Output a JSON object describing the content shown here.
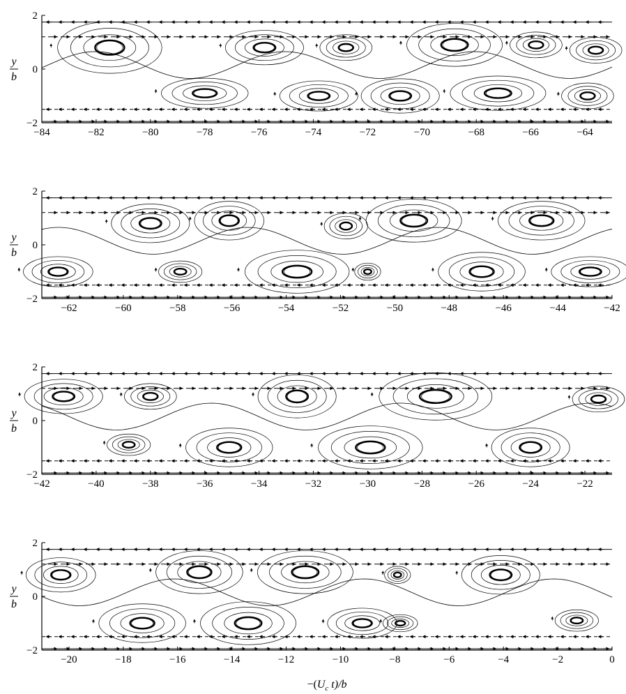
{
  "chart_data": {
    "type": "streamline",
    "xlabel": "−(U_c t)/b",
    "xlabel_parts": {
      "prefix": "−(",
      "U": "U",
      "c": "c",
      "t": " t)/",
      "b": "b"
    },
    "ylabel": {
      "num": "y",
      "den": "b"
    },
    "panels": [
      {
        "xlim": [
          -84,
          -63
        ],
        "ylim": [
          -2,
          2
        ],
        "xticks": [
          -84,
          -82,
          -80,
          -78,
          -76,
          -74,
          -72,
          -70,
          -68,
          -66,
          -64
        ],
        "xtick_labels": [
          "−84",
          "−82",
          "−80",
          "−78",
          "−76",
          "−74",
          "−72",
          "−70",
          "−68",
          "−66",
          "−64"
        ],
        "yticks": [
          -2,
          0,
          2
        ],
        "ytick_labels": [
          "−2",
          "0",
          "2"
        ],
        "vortices": [
          {
            "x": -81.5,
            "y": 0.8,
            "rx": 1.2,
            "ry": 0.6
          },
          {
            "x": -75.8,
            "y": 0.8,
            "rx": 0.9,
            "ry": 0.4
          },
          {
            "x": -72.8,
            "y": 0.8,
            "rx": 0.6,
            "ry": 0.3
          },
          {
            "x": -68.8,
            "y": 0.9,
            "rx": 1.1,
            "ry": 0.5
          },
          {
            "x": -65.8,
            "y": 0.9,
            "rx": 0.6,
            "ry": 0.3
          },
          {
            "x": -63.6,
            "y": 0.7,
            "rx": 0.6,
            "ry": 0.3
          },
          {
            "x": -78,
            "y": -0.9,
            "rx": 1.0,
            "ry": 0.35
          },
          {
            "x": -73.8,
            "y": -1.0,
            "rx": 0.9,
            "ry": 0.35
          },
          {
            "x": -70.8,
            "y": -1.0,
            "rx": 0.9,
            "ry": 0.4
          },
          {
            "x": -67.2,
            "y": -0.9,
            "rx": 1.1,
            "ry": 0.4
          },
          {
            "x": -63.9,
            "y": -1.0,
            "rx": 0.6,
            "ry": 0.3
          }
        ]
      },
      {
        "xlim": [
          -63,
          -42
        ],
        "ylim": [
          -2,
          2
        ],
        "xticks": [
          -62,
          -60,
          -58,
          -56,
          -54,
          -52,
          -50,
          -48,
          -46,
          -44,
          -42
        ],
        "xtick_labels": [
          "−62",
          "−60",
          "−58",
          "−56",
          "−54",
          "−52",
          "−50",
          "−48",
          "−46",
          "−44",
          "−42"
        ],
        "yticks": [
          -2,
          0,
          2
        ],
        "ytick_labels": [
          "−2",
          "0",
          "2"
        ],
        "vortices": [
          {
            "x": -59,
            "y": 0.8,
            "rx": 0.9,
            "ry": 0.45
          },
          {
            "x": -56.1,
            "y": 0.9,
            "rx": 0.8,
            "ry": 0.45
          },
          {
            "x": -51.8,
            "y": 0.7,
            "rx": 0.5,
            "ry": 0.3
          },
          {
            "x": -49.3,
            "y": 0.9,
            "rx": 1.1,
            "ry": 0.5
          },
          {
            "x": -44.6,
            "y": 0.9,
            "rx": 1.0,
            "ry": 0.45
          },
          {
            "x": -62.4,
            "y": -1.0,
            "rx": 0.8,
            "ry": 0.35
          },
          {
            "x": -57.9,
            "y": -1.0,
            "rx": 0.5,
            "ry": 0.25
          },
          {
            "x": -53.6,
            "y": -1.0,
            "rx": 1.2,
            "ry": 0.5
          },
          {
            "x": -51.0,
            "y": -1.0,
            "rx": 0.3,
            "ry": 0.2
          },
          {
            "x": -46.8,
            "y": -1.0,
            "rx": 1.0,
            "ry": 0.45
          },
          {
            "x": -42.8,
            "y": -1.0,
            "rx": 0.9,
            "ry": 0.35
          }
        ]
      },
      {
        "xlim": [
          -42,
          -21
        ],
        "ylim": [
          -2,
          2
        ],
        "xticks": [
          -42,
          -40,
          -38,
          -36,
          -34,
          -32,
          -30,
          -28,
          -26,
          -24,
          -22
        ],
        "xtick_labels": [
          "−42",
          "−40",
          "−38",
          "−36",
          "−34",
          "−32",
          "−30",
          "−28",
          "−26",
          "−24",
          "−22"
        ],
        "yticks": [
          -2,
          0,
          2
        ],
        "ytick_labels": [
          "−2",
          "0",
          "2"
        ],
        "vortices": [
          {
            "x": -41.2,
            "y": 0.9,
            "rx": 0.9,
            "ry": 0.4
          },
          {
            "x": -38,
            "y": 0.9,
            "rx": 0.6,
            "ry": 0.3
          },
          {
            "x": -32.6,
            "y": 0.9,
            "rx": 0.9,
            "ry": 0.5
          },
          {
            "x": -27.5,
            "y": 0.9,
            "rx": 1.3,
            "ry": 0.55
          },
          {
            "x": -21.5,
            "y": 0.8,
            "rx": 0.6,
            "ry": 0.3
          },
          {
            "x": -38.8,
            "y": -0.9,
            "rx": 0.5,
            "ry": 0.25
          },
          {
            "x": -35.1,
            "y": -1.0,
            "rx": 1.0,
            "ry": 0.45
          },
          {
            "x": -29.9,
            "y": -1.0,
            "rx": 1.2,
            "ry": 0.5
          },
          {
            "x": -24,
            "y": -1.0,
            "rx": 0.9,
            "ry": 0.45
          }
        ]
      },
      {
        "xlim": [
          -21,
          0
        ],
        "ylim": [
          -2,
          2
        ],
        "xticks": [
          -20,
          -18,
          -16,
          -14,
          -12,
          -10,
          -8,
          -6,
          -4,
          -2,
          0
        ],
        "xtick_labels": [
          "−20",
          "−18",
          "−16",
          "−14",
          "−12",
          "−10",
          "−8",
          "−6",
          "−4",
          "−2",
          "0"
        ],
        "yticks": [
          -2,
          0,
          2
        ],
        "ytick_labels": [
          "−2",
          "0",
          "2"
        ],
        "vortices": [
          {
            "x": -20.3,
            "y": 0.8,
            "rx": 0.8,
            "ry": 0.4
          },
          {
            "x": -15.2,
            "y": 0.9,
            "rx": 1.0,
            "ry": 0.5
          },
          {
            "x": -11.3,
            "y": 0.9,
            "rx": 1.1,
            "ry": 0.5
          },
          {
            "x": -7.9,
            "y": 0.8,
            "rx": 0.3,
            "ry": 0.2
          },
          {
            "x": -4.1,
            "y": 0.8,
            "rx": 0.9,
            "ry": 0.45
          },
          {
            "x": -17.3,
            "y": -1.0,
            "rx": 1.0,
            "ry": 0.45
          },
          {
            "x": -13.4,
            "y": -1.0,
            "rx": 1.1,
            "ry": 0.5
          },
          {
            "x": -9.2,
            "y": -1.0,
            "rx": 0.8,
            "ry": 0.35
          },
          {
            "x": -7.8,
            "y": -1.0,
            "rx": 0.4,
            "ry": 0.2
          },
          {
            "x": -1.3,
            "y": -0.9,
            "rx": 0.5,
            "ry": 0.25
          }
        ]
      }
    ],
    "boundary_lines": [
      {
        "y": 1.75,
        "direction": "left"
      },
      {
        "y": 1.2,
        "direction": "right"
      },
      {
        "y": -1.5,
        "direction": "left"
      },
      {
        "y": -1.95,
        "direction": "right"
      }
    ],
    "grid": false
  }
}
